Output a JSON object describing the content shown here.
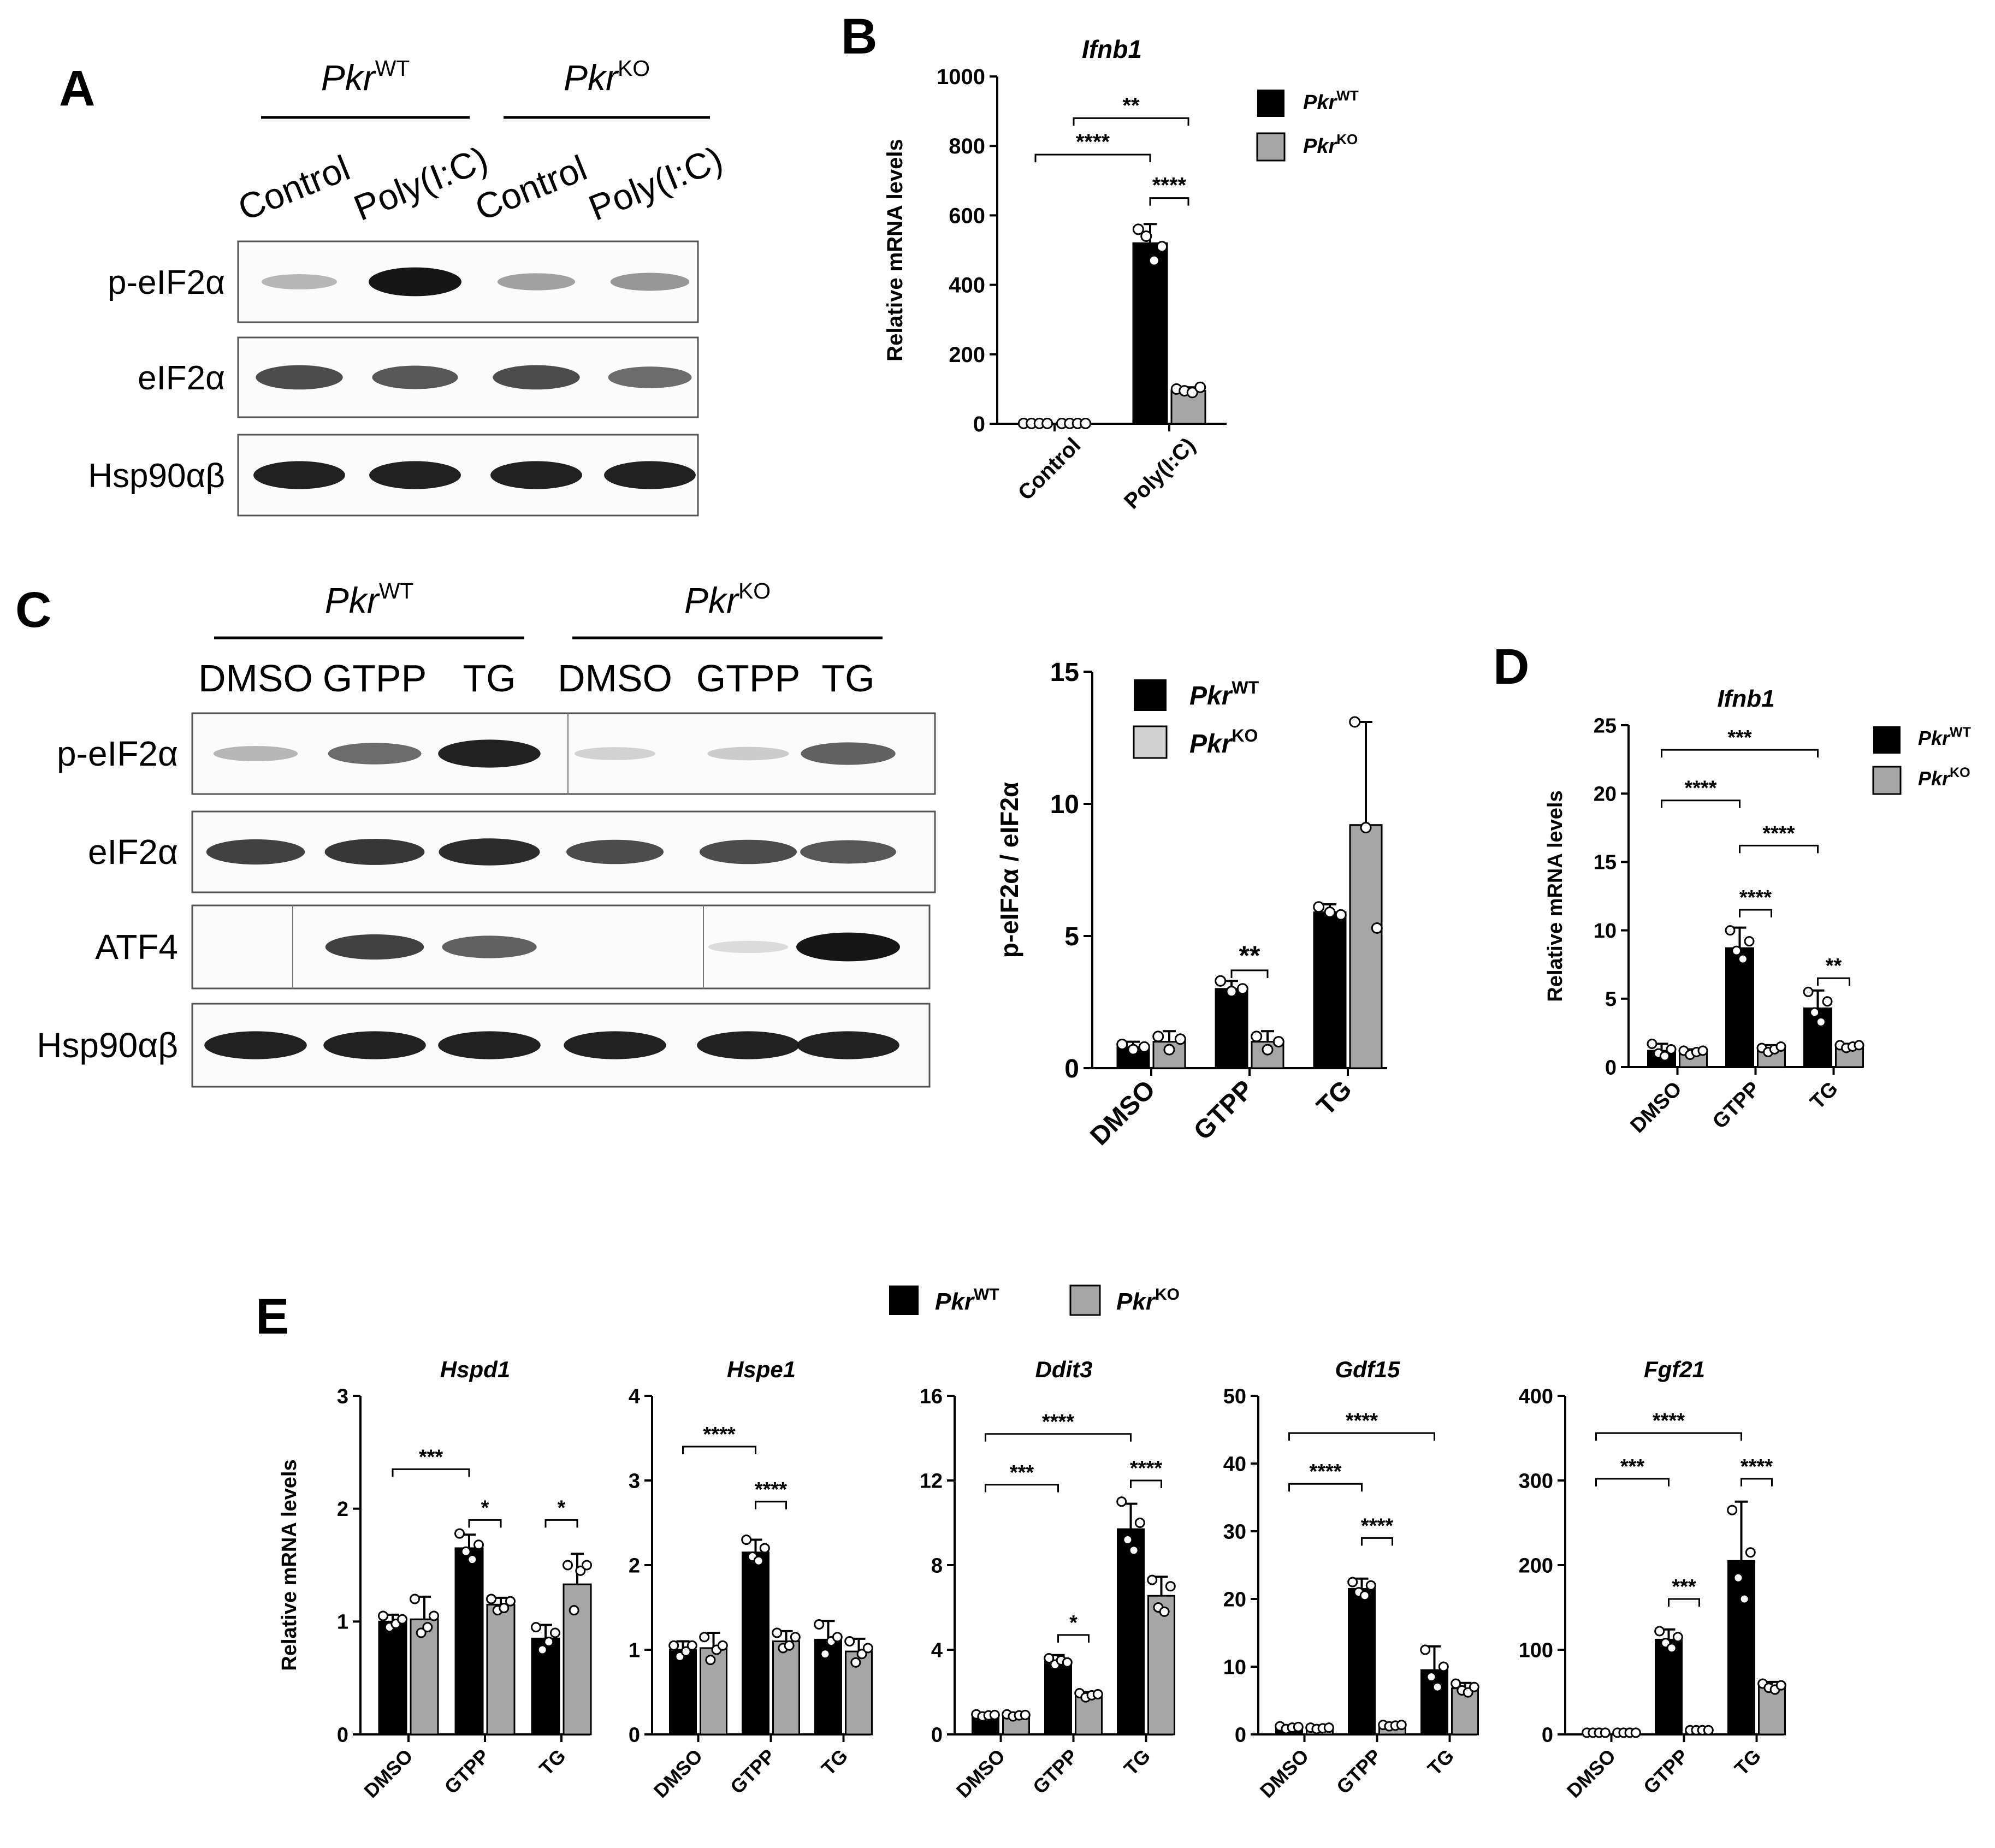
{
  "panels": {
    "A": {
      "letter": "A",
      "groups": [
        {
          "gene": "Pkr",
          "sup": "WT"
        },
        {
          "gene": "Pkr",
          "sup": "KO"
        }
      ],
      "lanes": [
        "Control",
        "Poly(I:C)",
        "Control",
        "Poly(I:C)"
      ],
      "blots": [
        {
          "label": "p-eIF2α",
          "intensity": [
            0.25,
            1.0,
            0.35,
            0.4
          ]
        },
        {
          "label": "eIF2α",
          "intensity": [
            0.75,
            0.7,
            0.75,
            0.6
          ]
        },
        {
          "label": "Hsp90αβ",
          "intensity": [
            0.95,
            0.95,
            0.95,
            0.95
          ]
        }
      ]
    },
    "C": {
      "letter": "C",
      "groups": [
        {
          "gene": "Pkr",
          "sup": "WT"
        },
        {
          "gene": "Pkr",
          "sup": "KO"
        }
      ],
      "lanes": [
        "DMSO",
        "GTPP",
        "TG",
        "DMSO",
        "GTPP",
        "TG"
      ],
      "blots": [
        {
          "label": "p-eIF2α",
          "intensity": [
            0.25,
            0.6,
            0.95,
            0.12,
            0.15,
            0.65
          ]
        },
        {
          "label": "eIF2α",
          "intensity": [
            0.8,
            0.85,
            0.9,
            0.75,
            0.75,
            0.7
          ]
        },
        {
          "label": "ATF4",
          "intensity": [
            0.0,
            0.8,
            0.65,
            0.0,
            0.08,
            1.0
          ]
        },
        {
          "label": "Hsp90αβ",
          "intensity": [
            0.95,
            0.95,
            0.95,
            0.95,
            0.95,
            0.95
          ]
        }
      ]
    },
    "legend": {
      "wt": {
        "gene": "Pkr",
        "sup": "WT",
        "color": "#000000"
      },
      "ko": {
        "gene": "Pkr",
        "sup": "KO",
        "color": "#a6a6a6"
      }
    },
    "E_letter": "E",
    "B_letter": "B",
    "D_letter": "D"
  },
  "chart_data": [
    {
      "id": "B",
      "type": "bar",
      "title": "Ifnb1",
      "ylabel": "Relative mRNA levels",
      "categories": [
        "Control",
        "Poly(I:C)"
      ],
      "ylim": [
        0,
        1000
      ],
      "yticks": [
        0,
        200,
        400,
        600,
        800,
        1000
      ],
      "series": [
        {
          "name": "PkrWT",
          "values": [
            1,
            520
          ],
          "err": [
            0,
            55
          ]
        },
        {
          "name": "PkrKO",
          "values": [
            1,
            95
          ],
          "err": [
            0,
            10
          ]
        }
      ],
      "points": [
        [
          [
            1,
            1,
            1,
            1
          ],
          [
            560,
            540,
            470,
            510
          ]
        ],
        [
          [
            1,
            1,
            1,
            1
          ],
          [
            100,
            95,
            90,
            105
          ]
        ]
      ],
      "sig": [
        {
          "from": [
            0,
            0
          ],
          "to": [
            1,
            0
          ],
          "y": 775,
          "label": "****"
        },
        {
          "from": [
            1,
            0
          ],
          "to": [
            1,
            1
          ],
          "y": 650,
          "label": "****"
        },
        {
          "from": [
            0,
            1
          ],
          "to": [
            1,
            1
          ],
          "y": 880,
          "label": "**"
        }
      ]
    },
    {
      "id": "C2",
      "type": "bar",
      "title": "",
      "ylabel": "p-eIF2α / eIF2α",
      "categories": [
        "DMSO",
        "GTPP",
        "TG"
      ],
      "ylim": [
        0,
        15
      ],
      "yticks": [
        0,
        5,
        10,
        15
      ],
      "series": [
        {
          "name": "PkrWT",
          "values": [
            0.8,
            3.0,
            5.9
          ],
          "err": [
            0.2,
            0.3,
            0.3
          ]
        },
        {
          "name": "PkrKO",
          "values": [
            1.0,
            1.0,
            9.2
          ],
          "err": [
            0.4,
            0.4,
            3.9
          ]
        }
      ],
      "points": [
        [
          [
            0.9,
            0.7,
            0.8
          ],
          [
            3.3,
            2.9,
            3.0
          ],
          [
            6.1,
            5.9,
            5.8
          ]
        ],
        [
          [
            1.2,
            0.7,
            1.1
          ],
          [
            1.2,
            0.7,
            1.0
          ],
          [
            13.1,
            9.1,
            5.3
          ]
        ]
      ],
      "sig": [
        {
          "from": [
            1,
            0
          ],
          "to": [
            1,
            1
          ],
          "y": 3.7,
          "label": "**"
        }
      ]
    },
    {
      "id": "D",
      "type": "bar",
      "title": "Ifnb1",
      "ylabel": "Relative mRNA levels",
      "categories": [
        "DMSO",
        "GTPP",
        "TG"
      ],
      "ylim": [
        0,
        25
      ],
      "yticks": [
        0,
        5,
        10,
        15,
        20,
        25
      ],
      "series": [
        {
          "name": "PkrWT",
          "values": [
            1.2,
            8.7,
            4.3
          ],
          "err": [
            0.5,
            1.5,
            1.3
          ]
        },
        {
          "name": "PkrKO",
          "values": [
            1.1,
            1.3,
            1.5
          ],
          "err": [
            0.2,
            0.3,
            0.2
          ]
        }
      ],
      "points": [
        [
          [
            1.7,
            1.0,
            0.8,
            1.3
          ],
          [
            10.0,
            8.5,
            7.9,
            9.2
          ],
          [
            5.5,
            4.0,
            3.3,
            4.8
          ]
        ],
        [
          [
            1.2,
            0.9,
            1.1,
            1.2
          ],
          [
            1.4,
            1.1,
            1.3,
            1.5
          ],
          [
            1.6,
            1.4,
            1.5,
            1.6
          ]
        ]
      ],
      "sig": [
        {
          "from": [
            0,
            0
          ],
          "to": [
            1,
            0
          ],
          "y": 19.5,
          "label": "****"
        },
        {
          "from": [
            1,
            0
          ],
          "to": [
            1,
            1
          ],
          "y": 11.5,
          "label": "****"
        },
        {
          "from": [
            1,
            0
          ],
          "to": [
            2,
            0
          ],
          "y": 16.2,
          "label": "****"
        },
        {
          "from": [
            2,
            0
          ],
          "to": [
            2,
            1
          ],
          "y": 6.5,
          "label": "**"
        },
        {
          "from": [
            0,
            0
          ],
          "to": [
            2,
            0
          ],
          "y": 23.2,
          "label": "***"
        }
      ]
    },
    {
      "id": "E1",
      "type": "bar",
      "title": "Hspd1",
      "ylabel": "Relative mRNA levels",
      "categories": [
        "DMSO",
        "GTPP",
        "TG"
      ],
      "ylim": [
        0,
        3
      ],
      "yticks": [
        0,
        1,
        2,
        3
      ],
      "series": [
        {
          "name": "PkrWT",
          "values": [
            1.0,
            1.65,
            0.85
          ],
          "err": [
            0.06,
            0.12,
            0.12
          ]
        },
        {
          "name": "PkrKO",
          "values": [
            1.02,
            1.15,
            1.33
          ],
          "err": [
            0.2,
            0.06,
            0.27
          ]
        }
      ],
      "points": [
        [
          [
            1.05,
            0.95,
            0.98,
            1.02
          ],
          [
            1.78,
            1.62,
            1.55,
            1.68
          ],
          [
            0.95,
            0.75,
            0.82,
            0.9
          ]
        ],
        [
          [
            1.2,
            0.9,
            0.95,
            1.05
          ],
          [
            1.2,
            1.1,
            1.12,
            1.18
          ],
          [
            1.5,
            1.1,
            1.45,
            1.5
          ]
        ]
      ],
      "sig": [
        {
          "from": [
            0,
            0
          ],
          "to": [
            1,
            0
          ],
          "y": 2.35,
          "label": "***"
        },
        {
          "from": [
            1,
            0
          ],
          "to": [
            1,
            1
          ],
          "y": 1.9,
          "label": "*"
        },
        {
          "from": [
            2,
            0
          ],
          "to": [
            2,
            1
          ],
          "y": 1.9,
          "label": "*"
        }
      ]
    },
    {
      "id": "E2",
      "type": "bar",
      "title": "Hspe1",
      "ylabel": "",
      "categories": [
        "DMSO",
        "GTPP",
        "TG"
      ],
      "ylim": [
        0,
        4
      ],
      "yticks": [
        0,
        1,
        2,
        3,
        4
      ],
      "series": [
        {
          "name": "PkrWT",
          "values": [
            1.0,
            2.15,
            1.12
          ],
          "err": [
            0.1,
            0.15,
            0.22
          ]
        },
        {
          "name": "PkrKO",
          "values": [
            1.02,
            1.1,
            0.98
          ],
          "err": [
            0.18,
            0.12,
            0.15
          ]
        }
      ],
      "points": [
        [
          [
            1.05,
            0.92,
            0.98,
            1.05
          ],
          [
            2.3,
            2.1,
            2.05,
            2.2
          ],
          [
            1.3,
            0.95,
            1.1,
            1.15
          ]
        ],
        [
          [
            1.15,
            0.88,
            1.0,
            1.05
          ],
          [
            1.2,
            1.02,
            1.05,
            1.15
          ],
          [
            1.1,
            0.85,
            0.95,
            1.02
          ]
        ]
      ],
      "sig": [
        {
          "from": [
            0,
            0
          ],
          "to": [
            1,
            0
          ],
          "y": 3.4,
          "label": "****"
        },
        {
          "from": [
            1,
            0
          ],
          "to": [
            1,
            1
          ],
          "y": 2.75,
          "label": "****"
        }
      ]
    },
    {
      "id": "E3",
      "type": "bar",
      "title": "Ddit3",
      "ylabel": "",
      "categories": [
        "DMSO",
        "GTPP",
        "TG"
      ],
      "ylim": [
        0,
        16
      ],
      "yticks": [
        0,
        4,
        8,
        12,
        16
      ],
      "series": [
        {
          "name": "PkrWT",
          "values": [
            0.9,
            3.45,
            9.7
          ],
          "err": [
            0.1,
            0.3,
            1.2
          ]
        },
        {
          "name": "PkrKO",
          "values": [
            0.9,
            1.85,
            6.55
          ],
          "err": [
            0.1,
            0.15,
            0.9
          ]
        }
      ],
      "points": [
        [
          [
            0.95,
            0.85,
            0.9,
            0.92
          ],
          [
            3.6,
            3.3,
            3.5,
            3.4
          ],
          [
            11.0,
            9.2,
            8.7,
            10.0
          ]
        ],
        [
          [
            0.95,
            0.85,
            0.9,
            0.92
          ],
          [
            1.95,
            1.75,
            1.85,
            1.9
          ],
          [
            7.3,
            6.0,
            5.8,
            7.0
          ]
        ]
      ],
      "sig": [
        {
          "from": [
            0,
            0
          ],
          "to": [
            1,
            0
          ],
          "y": 11.8,
          "label": "***"
        },
        {
          "from": [
            1,
            0
          ],
          "to": [
            1,
            1
          ],
          "y": 4.7,
          "label": "*"
        },
        {
          "from": [
            2,
            0
          ],
          "to": [
            2,
            1
          ],
          "y": 12.0,
          "label": "****"
        },
        {
          "from": [
            0,
            0
          ],
          "to": [
            2,
            0
          ],
          "y": 14.2,
          "label": "****"
        }
      ]
    },
    {
      "id": "E4",
      "type": "bar",
      "title": "Gdf15",
      "ylabel": "",
      "categories": [
        "DMSO",
        "GTPP",
        "TG"
      ],
      "ylim": [
        0,
        50
      ],
      "yticks": [
        0,
        10,
        20,
        30,
        40,
        50
      ],
      "series": [
        {
          "name": "PkrWT",
          "values": [
            1.0,
            21.5,
            9.5
          ],
          "err": [
            0.3,
            1.5,
            3.5
          ]
        },
        {
          "name": "PkrKO",
          "values": [
            0.9,
            1.3,
            6.8
          ],
          "err": [
            0.2,
            0.2,
            0.8
          ]
        }
      ],
      "points": [
        [
          [
            1.2,
            0.8,
            1.0,
            1.1
          ],
          [
            22.5,
            21.0,
            20.5,
            22.0
          ],
          [
            12.5,
            8.5,
            7.0,
            10.0
          ]
        ],
        [
          [
            1.0,
            0.8,
            0.9,
            1.0
          ],
          [
            1.4,
            1.2,
            1.3,
            1.4
          ],
          [
            7.5,
            6.5,
            6.2,
            7.0
          ]
        ]
      ],
      "sig": [
        {
          "from": [
            0,
            0
          ],
          "to": [
            1,
            0
          ],
          "y": 37.0,
          "label": "****"
        },
        {
          "from": [
            1,
            0
          ],
          "to": [
            1,
            1
          ],
          "y": 29.0,
          "label": "****"
        },
        {
          "from": [
            0,
            0
          ],
          "to": [
            2,
            0
          ],
          "y": 44.5,
          "label": "****"
        }
      ]
    },
    {
      "id": "E5",
      "type": "bar",
      "title": "Fgf21",
      "ylabel": "",
      "categories": [
        "DMSO",
        "GTPP",
        "TG"
      ],
      "ylim": [
        0,
        400
      ],
      "yticks": [
        0,
        100,
        200,
        300,
        400
      ],
      "series": [
        {
          "name": "PkrWT",
          "values": [
            2,
            112,
            205
          ],
          "err": [
            1,
            12,
            70
          ]
        },
        {
          "name": "PkrKO",
          "values": [
            2,
            5,
            57
          ],
          "err": [
            1,
            1,
            5
          ]
        }
      ],
      "points": [
        [
          [
            2,
            2,
            2,
            2
          ],
          [
            122,
            108,
            102,
            115
          ],
          [
            265,
            185,
            160,
            215
          ]
        ],
        [
          [
            2,
            2,
            2,
            2
          ],
          [
            5,
            5,
            5,
            5
          ],
          [
            60,
            55,
            53,
            58
          ]
        ]
      ],
      "sig": [
        {
          "from": [
            0,
            0
          ],
          "to": [
            1,
            0
          ],
          "y": 302,
          "label": "***"
        },
        {
          "from": [
            1,
            0
          ],
          "to": [
            1,
            1
          ],
          "y": 160,
          "label": "***"
        },
        {
          "from": [
            2,
            0
          ],
          "to": [
            2,
            1
          ],
          "y": 302,
          "label": "****"
        },
        {
          "from": [
            0,
            0
          ],
          "to": [
            2,
            0
          ],
          "y": 356,
          "label": "****"
        }
      ]
    }
  ]
}
